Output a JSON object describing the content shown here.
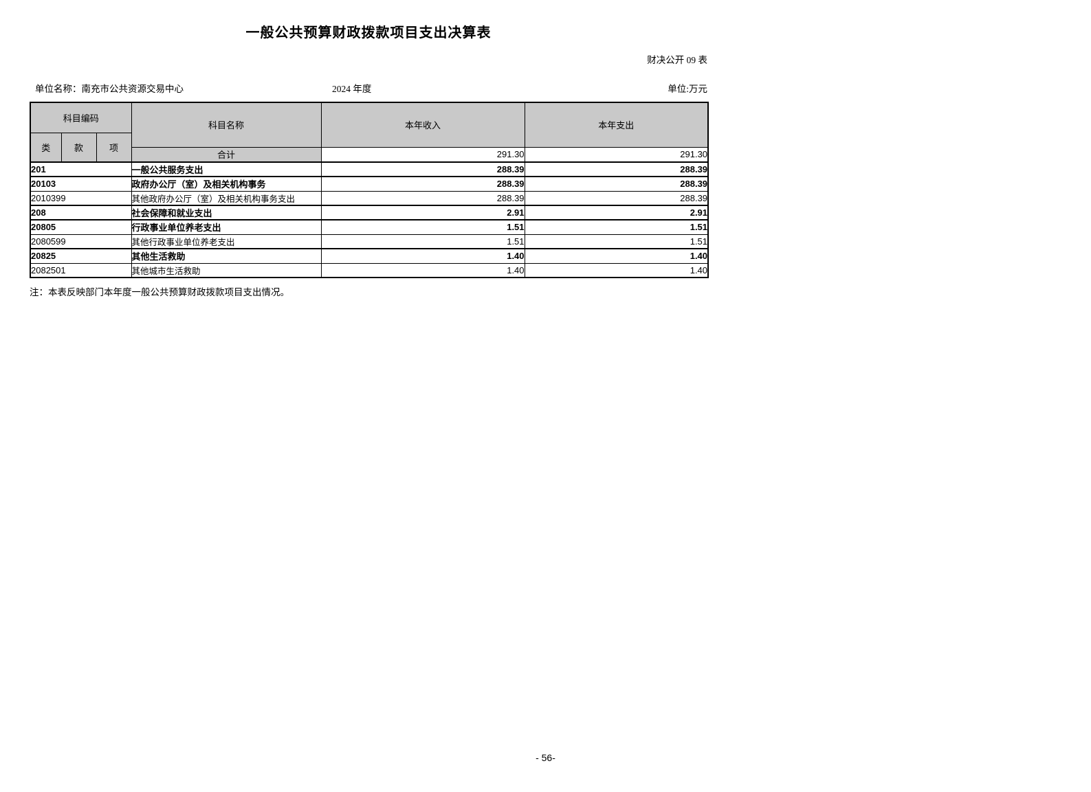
{
  "page": {
    "title": "一般公共预算财政拨款项目支出决算表",
    "doc_label": "财决公开 09 表",
    "unit_label": "单位名称：南充市公共资源交易中心",
    "year": "2024 年度",
    "unit_of_measure": "单位:万元",
    "note": "注：本表反映部门本年度一般公共预算财政拨款项目支出情况。",
    "page_number": "- 56-"
  },
  "table": {
    "header": {
      "subject_code": "科目编码",
      "code_class": "类",
      "code_section": "款",
      "code_item": "项",
      "subject_name": "科目名称",
      "current_year_income": "本年收入",
      "current_year_expense": "本年支出"
    },
    "total_row": {
      "label": "合计",
      "income": "291.30",
      "expense": "291.30"
    },
    "rows": [
      {
        "code": "201",
        "name": "一般公共服务支出",
        "income": "288.39",
        "expense": "288.39",
        "bold": true
      },
      {
        "code": "20103",
        "name": "政府办公厅（室）及相关机构事务",
        "income": "288.39",
        "expense": "288.39",
        "bold": true
      },
      {
        "code": "2010399",
        "name": "其他政府办公厅（室）及相关机构事务支出",
        "income": "288.39",
        "expense": "288.39",
        "bold": false
      },
      {
        "code": "208",
        "name": "社会保障和就业支出",
        "income": "2.91",
        "expense": "2.91",
        "bold": true
      },
      {
        "code": "20805",
        "name": "行政事业单位养老支出",
        "income": "1.51",
        "expense": "1.51",
        "bold": true
      },
      {
        "code": "2080599",
        "name": "其他行政事业单位养老支出",
        "income": "1.51",
        "expense": "1.51",
        "bold": false
      },
      {
        "code": "20825",
        "name": "其他生活救助",
        "income": "1.40",
        "expense": "1.40",
        "bold": true
      },
      {
        "code": "2082501",
        "name": "其他城市生活救助",
        "income": "1.40",
        "expense": "1.40",
        "bold": false
      }
    ]
  },
  "colors": {
    "header_gray": "#c9c9c9",
    "border": "#000000"
  }
}
